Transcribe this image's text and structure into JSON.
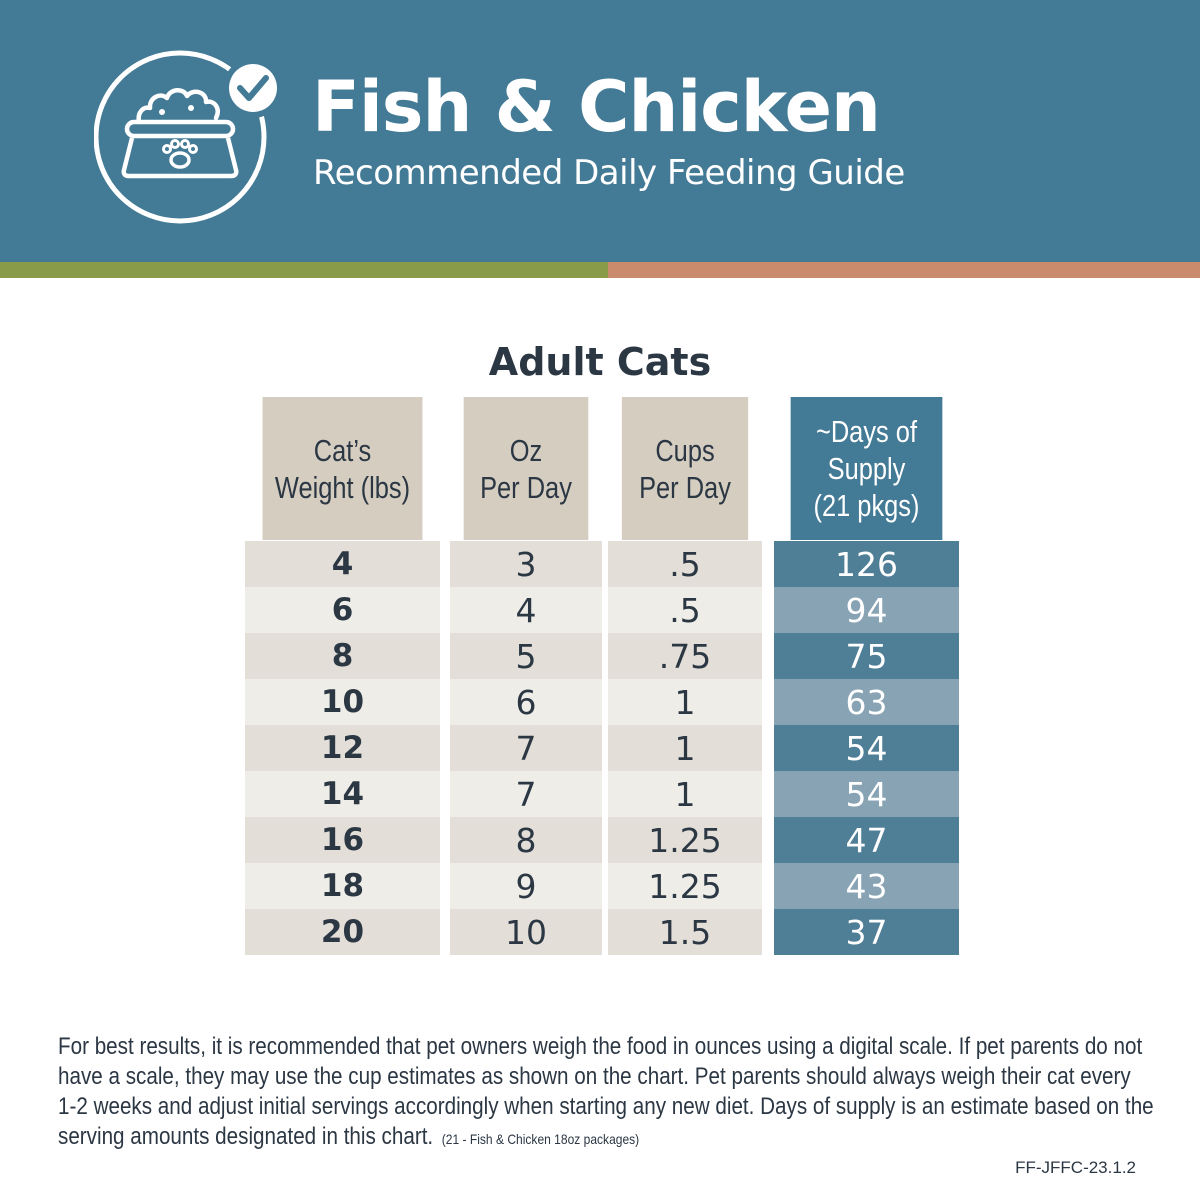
{
  "header": {
    "title": "Fish & Chicken",
    "subtitle": "Recommended Daily Feeding Guide",
    "logo_icon": "cat-food-bowl-with-checkmark-icon"
  },
  "colors": {
    "header_bg": "#437a95",
    "stripe_green": "#899a49",
    "stripe_orange": "#c98b6b",
    "header_cell_tan": "#d4cdc0",
    "row_dark": "#e3dfd8",
    "row_light": "#eeede8",
    "days_dark": "#4f7e97",
    "days_light": "#87a3b4"
  },
  "section_title": "Adult Cats",
  "table": {
    "headers": [
      [
        "Cat’s",
        "Weight (lbs)"
      ],
      [
        "Oz",
        "Per Day"
      ],
      [
        "Cups",
        "Per Day"
      ],
      [
        "~Days of",
        "Supply",
        "(21 pkgs)"
      ]
    ],
    "rows": [
      {
        "weight": "4",
        "oz": "3",
        "cups": ".5",
        "days": "126"
      },
      {
        "weight": "6",
        "oz": "4",
        "cups": ".5",
        "days": "94"
      },
      {
        "weight": "8",
        "oz": "5",
        "cups": ".75",
        "days": "75"
      },
      {
        "weight": "10",
        "oz": "6",
        "cups": "1",
        "days": "63"
      },
      {
        "weight": "12",
        "oz": "7",
        "cups": "1",
        "days": "54"
      },
      {
        "weight": "14",
        "oz": "7",
        "cups": "1",
        "days": "54"
      },
      {
        "weight": "16",
        "oz": "8",
        "cups": "1.25",
        "days": "47"
      },
      {
        "weight": "18",
        "oz": "9",
        "cups": "1.25",
        "days": "43"
      },
      {
        "weight": "20",
        "oz": "10",
        "cups": "1.5",
        "days": "37"
      }
    ]
  },
  "footnote": {
    "lines": [
      "For best results, it is recommended that pet owners weigh the food in ounces using a digital scale. If pet parents do not",
      "have a scale, they may use the cup estimates as shown on the chart. Pet parents should always weigh their cat every",
      "1-2 weeks and adjust initial servings accordingly when starting any new diet. Days of supply is an estimate based on the",
      "serving amounts designated in this chart."
    ],
    "small_note": "(21 - Fish & Chicken 18oz packages)"
  },
  "code": "FF-JFFC-23.1.2"
}
